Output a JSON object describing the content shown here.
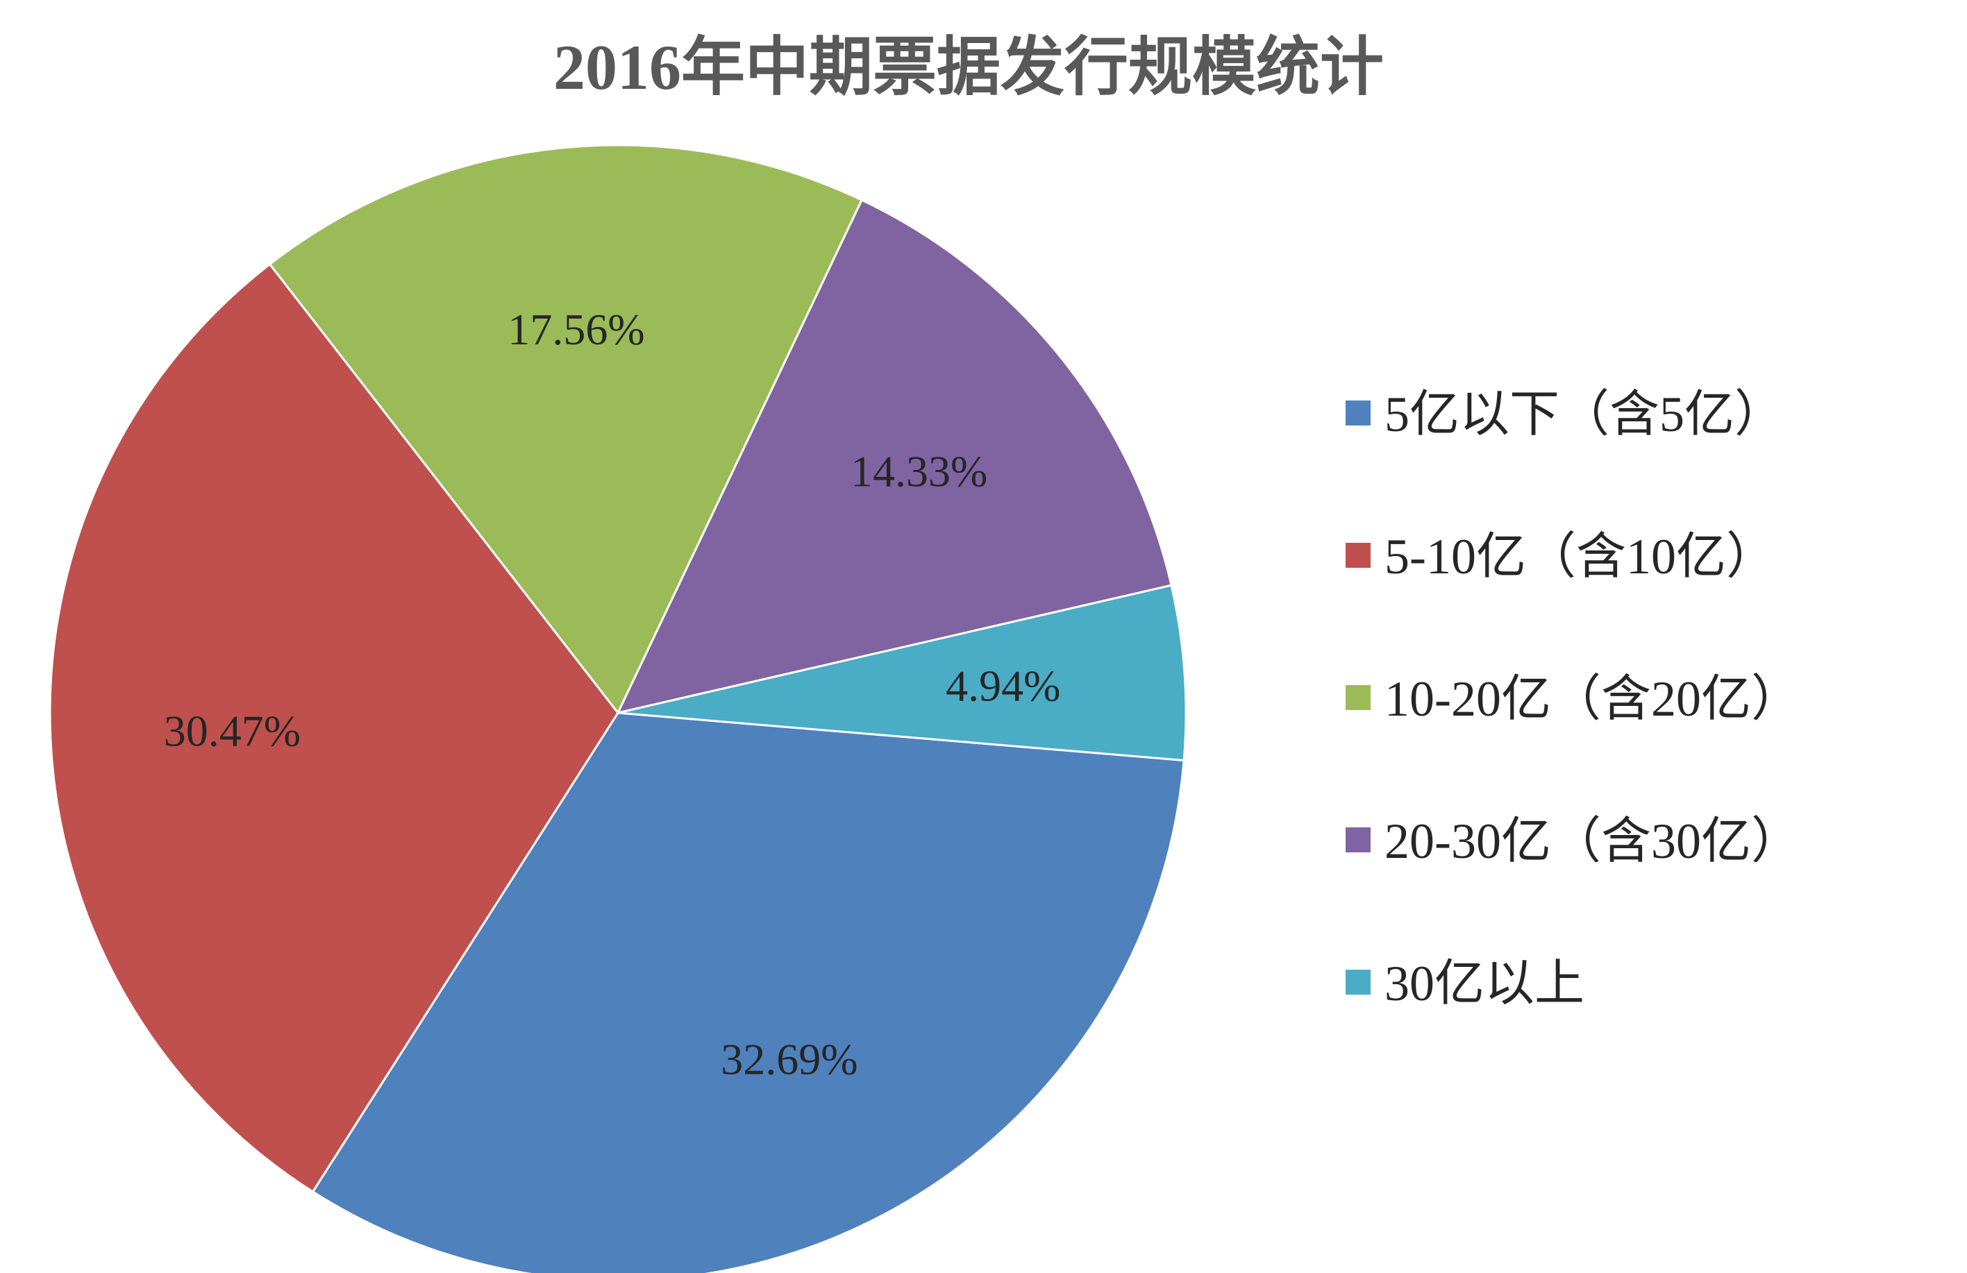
{
  "chart_data": {
    "type": "pie",
    "title": "2016年中期票据发行规模统计",
    "legend_position": "right",
    "slices": [
      {
        "label": "5亿以下（含5亿）",
        "value": 32.69,
        "display": "32.69%",
        "color": "#4F81BD"
      },
      {
        "label": "5-10亿（含10亿）",
        "value": 30.47,
        "display": "30.47%",
        "color": "#C0504D"
      },
      {
        "label": "10-20亿（含20亿）",
        "value": 17.56,
        "display": "17.56%",
        "color": "#9BBB59"
      },
      {
        "label": "20-30亿（含30亿）",
        "value": 14.33,
        "display": "14.33%",
        "color": "#8064A2"
      },
      {
        "label": "30亿以上",
        "value": 4.94,
        "display": "4.94%",
        "color": "#4BACC6"
      }
    ]
  }
}
